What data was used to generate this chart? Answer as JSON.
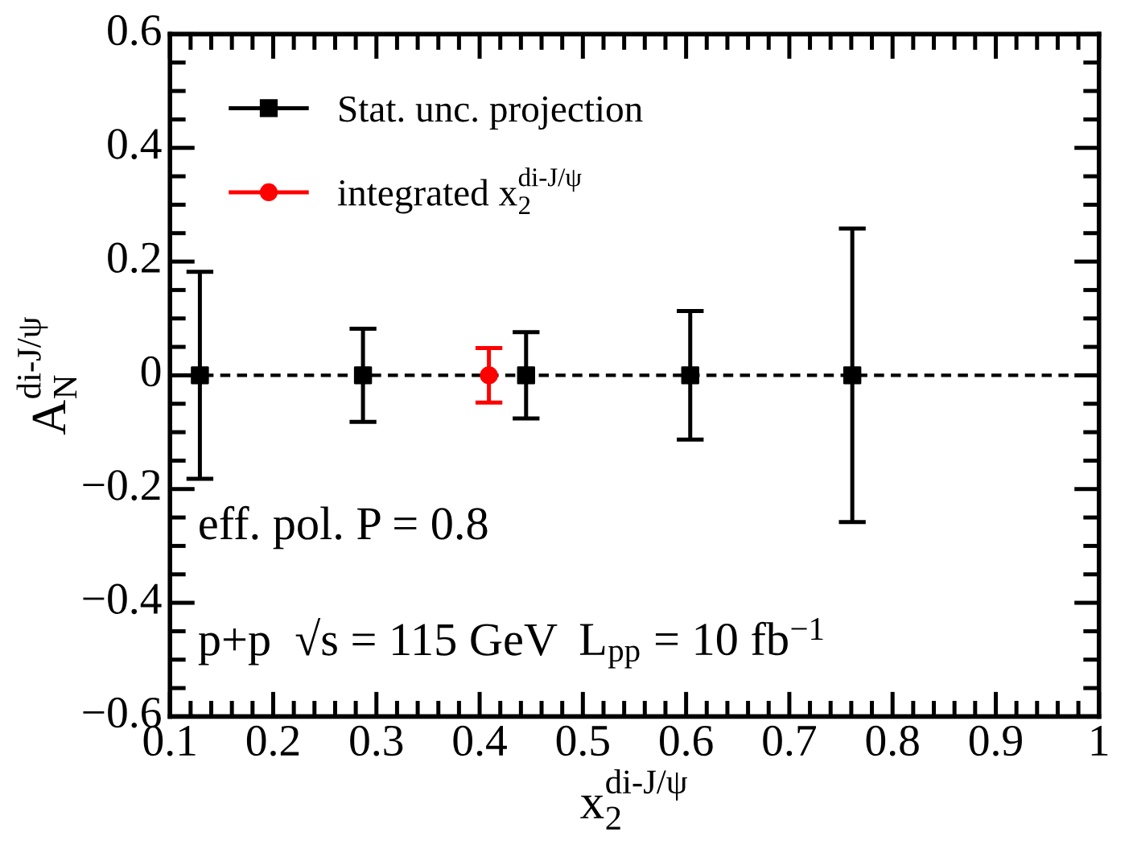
{
  "chart_data": {
    "type": "scatter",
    "xlabel": "x$^{di-J/ψ}$$_{2}$",
    "ylabel": "A$^{di-J/ψ}$$_{N}$",
    "series": [
      {
        "name": "Stat. unc. projection",
        "color": "#000000",
        "marker": "square",
        "x": [
          0.129,
          0.287,
          0.445,
          0.604,
          0.761
        ],
        "values": [
          0,
          0,
          0,
          0,
          0
        ],
        "errors": [
          0.182,
          0.082,
          0.076,
          0.113,
          0.258
        ]
      },
      {
        "name": "integrated x$^{di-J/ψ}$$_{2}$",
        "color": "#ff0000",
        "marker": "circle",
        "x": [
          0.409
        ],
        "values": [
          0
        ],
        "errors": [
          0.048
        ]
      }
    ],
    "xlim": [
      0.1,
      1.0
    ],
    "ylim": [
      -0.6,
      0.6
    ],
    "xticks": [
      0.1,
      0.2,
      0.3,
      0.4,
      0.5,
      0.6,
      0.7,
      0.8,
      0.9,
      {
        "value": 1.0,
        "label": "1"
      }
    ],
    "yticks": [
      {
        "value": -0.6,
        "label": "−0.6"
      },
      {
        "value": -0.4,
        "label": "−0.4"
      },
      {
        "value": -0.2,
        "label": "−0.2"
      },
      0,
      0.2,
      0.4,
      0.6
    ],
    "ref_lines": [
      {
        "axis": "y",
        "value": 0,
        "color": "#000000",
        "line_style": "dashed"
      }
    ],
    "annotations": [
      "eff. pol. P = 0.8",
      "p+p  √s = 115 GeV",
      "L$_{pp}$ = 10 fb$^{−1}$"
    ],
    "legend": "top left",
    "grid": false
  }
}
